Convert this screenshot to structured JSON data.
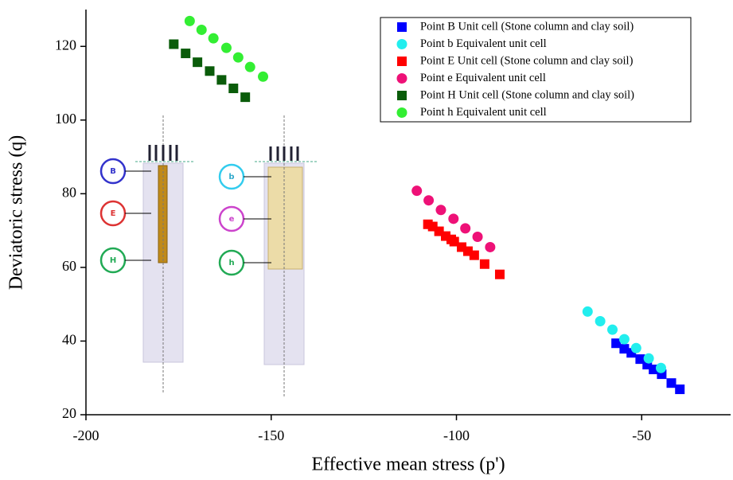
{
  "chart_data": {
    "type": "scatter",
    "x_label": "Effective mean stress (p')",
    "y_label": "Deviatoric stress (q)",
    "xlim": [
      -200,
      -26
    ],
    "ylim": [
      20,
      130
    ],
    "xticks": [
      -200,
      -150,
      -100,
      -50
    ],
    "yticks": [
      20,
      40,
      60,
      80,
      100,
      120
    ],
    "legend": "upper right",
    "annotations": [
      "B",
      "E",
      "H",
      "b",
      "e",
      "h"
    ],
    "series": [
      {
        "name": "Point B Unit cell (Stone column and clay soil)",
        "color": "#0000ff",
        "marker": "square",
        "x": [
          -56.9,
          -54.7,
          -52.8,
          -50.4,
          -48.5,
          -46.8,
          -44.6,
          -42.0,
          -39.7
        ],
        "values": [
          39.4,
          37.9,
          36.8,
          35.1,
          33.6,
          32.3,
          31.0,
          28.6,
          26.9
        ]
      },
      {
        "name": "Point b  Equivalent unit cell",
        "color": "#22eeee",
        "marker": "circle",
        "x": [
          -64.6,
          -61.2,
          -57.9,
          -54.7,
          -51.5,
          -48.1,
          -44.8
        ],
        "values": [
          48.0,
          45.4,
          43.1,
          40.5,
          38.1,
          35.3,
          32.7
        ]
      },
      {
        "name": "Point E Unit cell (Stone column and clay soil)",
        "color": "#ff0000",
        "marker": "square",
        "x": [
          -107.7,
          -106.4,
          -104.7,
          -102.9,
          -101.4,
          -100.6,
          -98.6,
          -96.9,
          -95.2,
          -92.4,
          -88.3
        ],
        "values": [
          71.7,
          71.1,
          69.8,
          68.5,
          67.6,
          67.0,
          65.5,
          64.4,
          63.3,
          60.9,
          58.1
        ]
      },
      {
        "name": "Point e  Equivalent unit cell",
        "color": "#ee1177",
        "marker": "circle",
        "x": [
          -110.7,
          -107.5,
          -104.2,
          -100.8,
          -97.6,
          -94.3,
          -90.9
        ],
        "values": [
          80.8,
          78.2,
          75.6,
          73.2,
          70.6,
          68.3,
          65.5
        ]
      },
      {
        "name": "Point H Unit cell (Stone column and clay soil)",
        "color": "#0a5c0a",
        "marker": "square",
        "x": [
          -176.3,
          -173.1,
          -169.9,
          -166.6,
          -163.4,
          -160.2,
          -157.0
        ],
        "values": [
          120.6,
          118.1,
          115.7,
          113.3,
          110.9,
          108.6,
          106.2
        ]
      },
      {
        "name": "Point h  Equivalent unit cell",
        "color": "#33ee33",
        "marker": "circle",
        "x": [
          -172.0,
          -168.8,
          -165.6,
          -162.1,
          -158.9,
          -155.7,
          -152.2
        ],
        "values": [
          126.9,
          124.5,
          122.2,
          119.6,
          117.0,
          114.4,
          111.8
        ]
      }
    ]
  }
}
